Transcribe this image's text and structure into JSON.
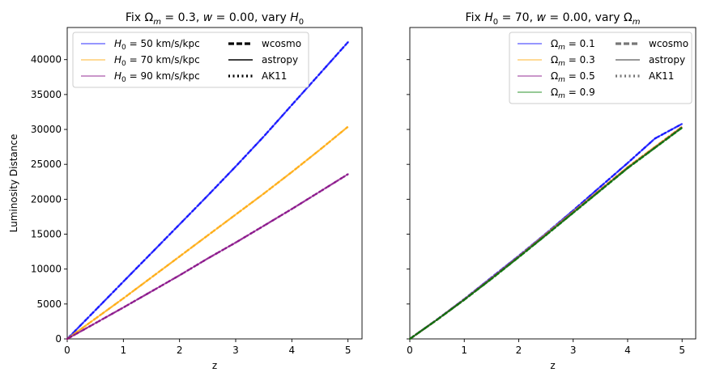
{
  "chart_data": [
    {
      "type": "line",
      "title": "Fix Ωm = 0.3, w = 0.00, vary H0",
      "title_parts": {
        "a": "Fix Ω",
        "a_sub": "m",
        "b": " = 0.3, ",
        "c": "w",
        "d": " = 0.00, vary ",
        "e": "H",
        "e_sub": "0"
      },
      "xlabel": "z",
      "ylabel": "Luminosity Distance",
      "xlim": [
        0,
        5.25
      ],
      "ylim": [
        0,
        44600
      ],
      "xticks": [
        0,
        1,
        2,
        3,
        4,
        5
      ],
      "yticks": [
        0,
        5000,
        10000,
        15000,
        20000,
        25000,
        30000,
        35000,
        40000
      ],
      "x": [
        0,
        0.5,
        1,
        1.5,
        2,
        2.5,
        3,
        3.5,
        4,
        4.5,
        5
      ],
      "series": [
        {
          "name": "H0 = 50 km/s/kpc",
          "legend_prefix": "H",
          "legend_sub": "0",
          "legend_rest": " = 50 km/s/kpc",
          "color": "#0000ff",
          "values": [
            0,
            4100,
            8200,
            12300,
            16400,
            20500,
            24700,
            29000,
            33500,
            38000,
            42500
          ]
        },
        {
          "name": "H0 = 70 km/s/kpc",
          "legend_prefix": "H",
          "legend_sub": "0",
          "legend_rest": " = 70 km/s/kpc",
          "color": "#ffa500",
          "values": [
            0,
            2900,
            5800,
            8800,
            11800,
            14800,
            17800,
            20800,
            23900,
            27100,
            30400
          ]
        },
        {
          "name": "H0 = 90 km/s/kpc",
          "legend_prefix": "H",
          "legend_sub": "0",
          "legend_rest": " = 90 km/s/kpc",
          "color": "#800080",
          "values": [
            0,
            2250,
            4500,
            6800,
            9100,
            11500,
            13800,
            16200,
            18600,
            21100,
            23600
          ]
        }
      ],
      "style_legend": [
        {
          "name": "wcosmo",
          "dash": "dashed"
        },
        {
          "name": "astropy",
          "dash": "solid"
        },
        {
          "name": "AK11",
          "dash": "dotted"
        }
      ],
      "legend_position": "upper-left"
    },
    {
      "type": "line",
      "title": "Fix H0 = 70, w = 0.00, vary Ωm",
      "title_parts": {
        "a": "Fix ",
        "e": "H",
        "e_sub": "0",
        "b": " = 70, ",
        "c": "w",
        "d": " = 0.00, vary Ω",
        "d_sub": "m"
      },
      "xlabel": "z",
      "xlim": [
        0,
        5.25
      ],
      "ylim": [
        0,
        44600
      ],
      "xticks": [
        0,
        1,
        2,
        3,
        4,
        5
      ],
      "x": [
        0,
        0.5,
        1,
        1.5,
        2,
        2.5,
        3,
        3.5,
        4,
        4.5,
        5
      ],
      "series": [
        {
          "name": "Ωm = 0.1",
          "legend_prefix": "Ω",
          "legend_sub": "m",
          "legend_rest": " = 0.1",
          "color": "#0000ff",
          "values": [
            0,
            2770,
            5700,
            8800,
            11900,
            15100,
            18400,
            21800,
            25200,
            28700,
            30800
          ]
        },
        {
          "name": "Ωm = 0.3",
          "legend_prefix": "Ω",
          "legend_sub": "m",
          "legend_rest": " = 0.3",
          "color": "#ffa500",
          "values": [
            0,
            2750,
            5650,
            8700,
            11800,
            15000,
            18200,
            21400,
            24600,
            27500,
            30400
          ]
        },
        {
          "name": "Ωm = 0.5",
          "legend_prefix": "Ω",
          "legend_sub": "m",
          "legend_rest": " = 0.5",
          "color": "#800080",
          "values": [
            0,
            2740,
            5620,
            8650,
            11750,
            14900,
            18100,
            21300,
            24500,
            27400,
            30300
          ]
        },
        {
          "name": "Ωm = 0.9",
          "legend_prefix": "Ω",
          "legend_sub": "m",
          "legend_rest": " = 0.9",
          "color": "#008000",
          "values": [
            0,
            2730,
            5600,
            8600,
            11700,
            14850,
            18050,
            21250,
            24450,
            27350,
            30250
          ]
        }
      ],
      "style_legend": [
        {
          "name": "wcosmo",
          "dash": "dashed"
        },
        {
          "name": "astropy",
          "dash": "solid"
        },
        {
          "name": "AK11",
          "dash": "dotted"
        }
      ],
      "legend_position": "upper-right"
    }
  ]
}
